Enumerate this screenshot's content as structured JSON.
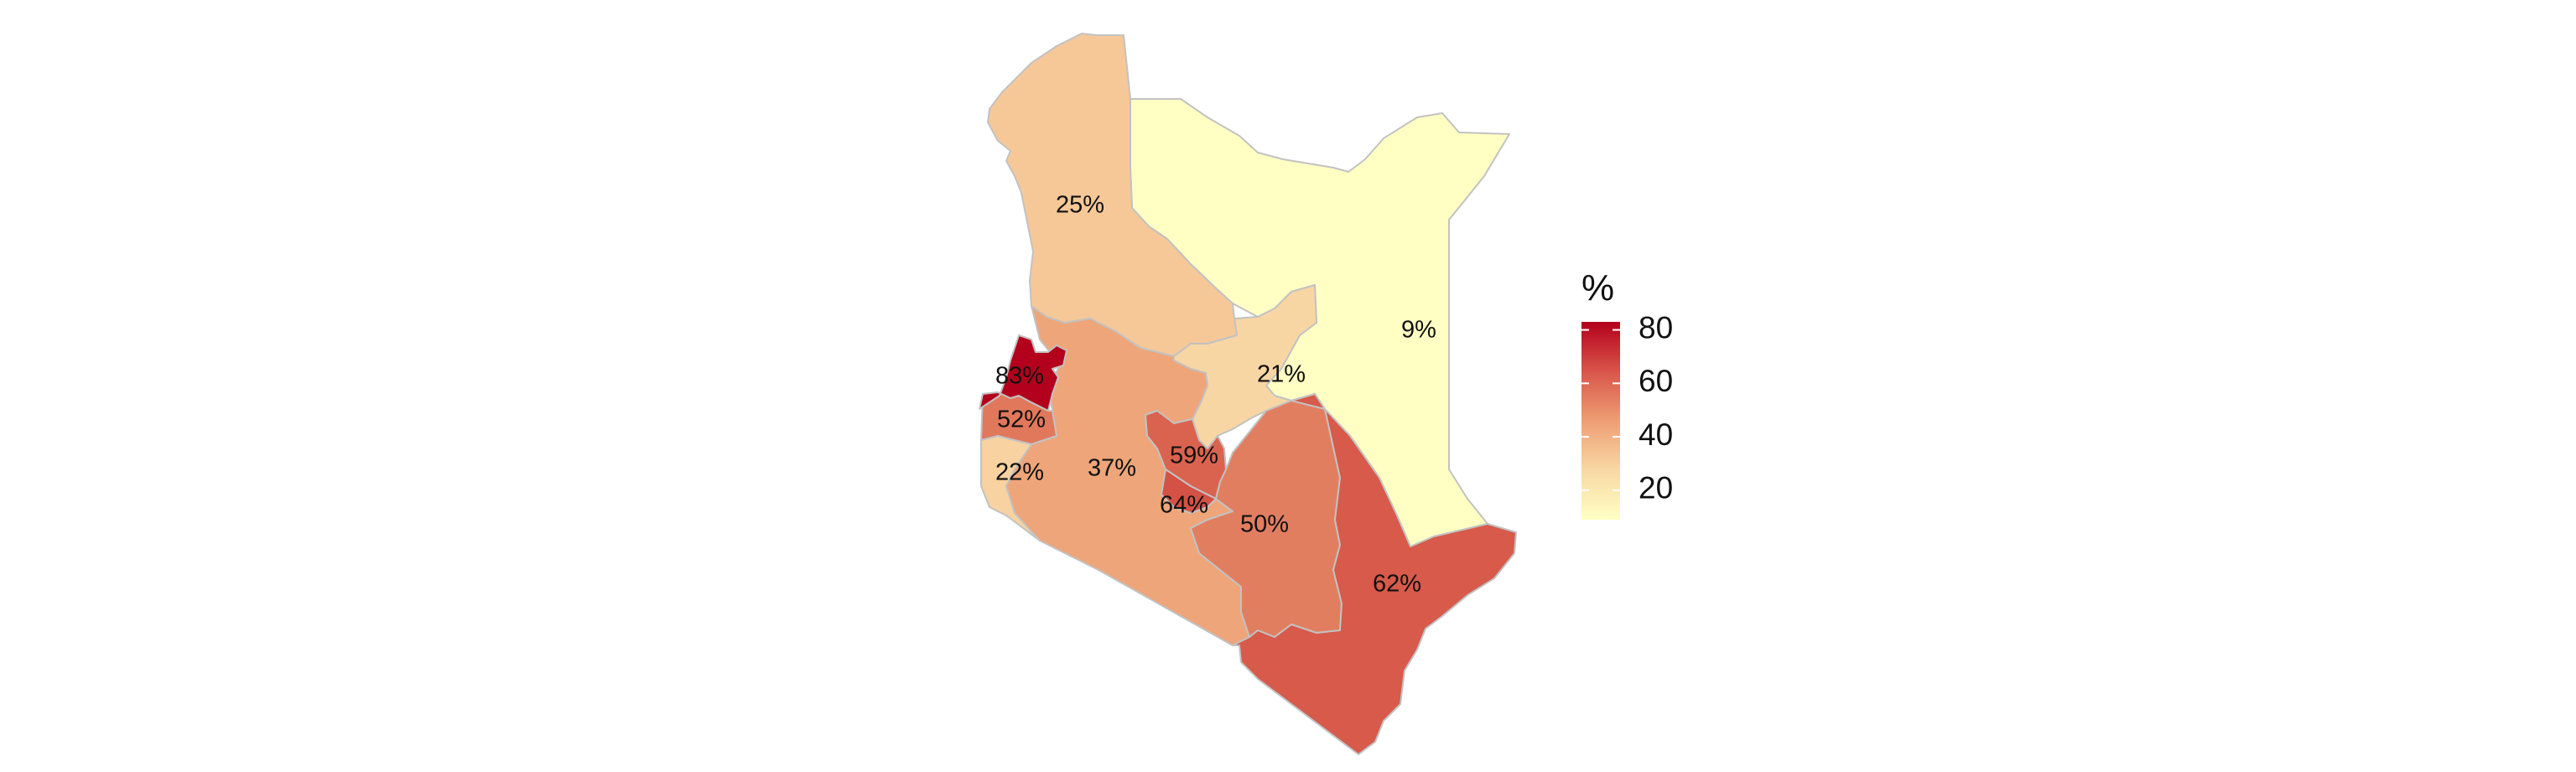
{
  "map": {
    "regions": [
      {
        "id": "turkana-north-rift",
        "label": "25%",
        "value": 25
      },
      {
        "id": "north-eastern",
        "label": "9%",
        "value": 9
      },
      {
        "id": "upper-eastern",
        "label": "21%",
        "value": 21
      },
      {
        "id": "western-north",
        "label": "83%",
        "value": 83
      },
      {
        "id": "western-south",
        "label": "52%",
        "value": 52
      },
      {
        "id": "nyanza",
        "label": "22%",
        "value": 22
      },
      {
        "id": "rift-valley-south",
        "label": "37%",
        "value": 37
      },
      {
        "id": "central",
        "label": "59%",
        "value": 59
      },
      {
        "id": "nairobi",
        "label": "64%",
        "value": 64
      },
      {
        "id": "eastern",
        "label": "50%",
        "value": 50
      },
      {
        "id": "coast",
        "label": "62%",
        "value": 62
      }
    ]
  },
  "legend": {
    "title": "%",
    "min": 9,
    "max": 83,
    "ticks": [
      "80",
      "60",
      "40",
      "20"
    ],
    "tick_values": [
      80,
      60,
      40,
      20
    ],
    "colors": {
      "low": "#ffffc4",
      "mid_low": "#f6c898",
      "mid": "#ec9c72",
      "mid_high": "#d75a4a",
      "high": "#b3001c"
    }
  }
}
